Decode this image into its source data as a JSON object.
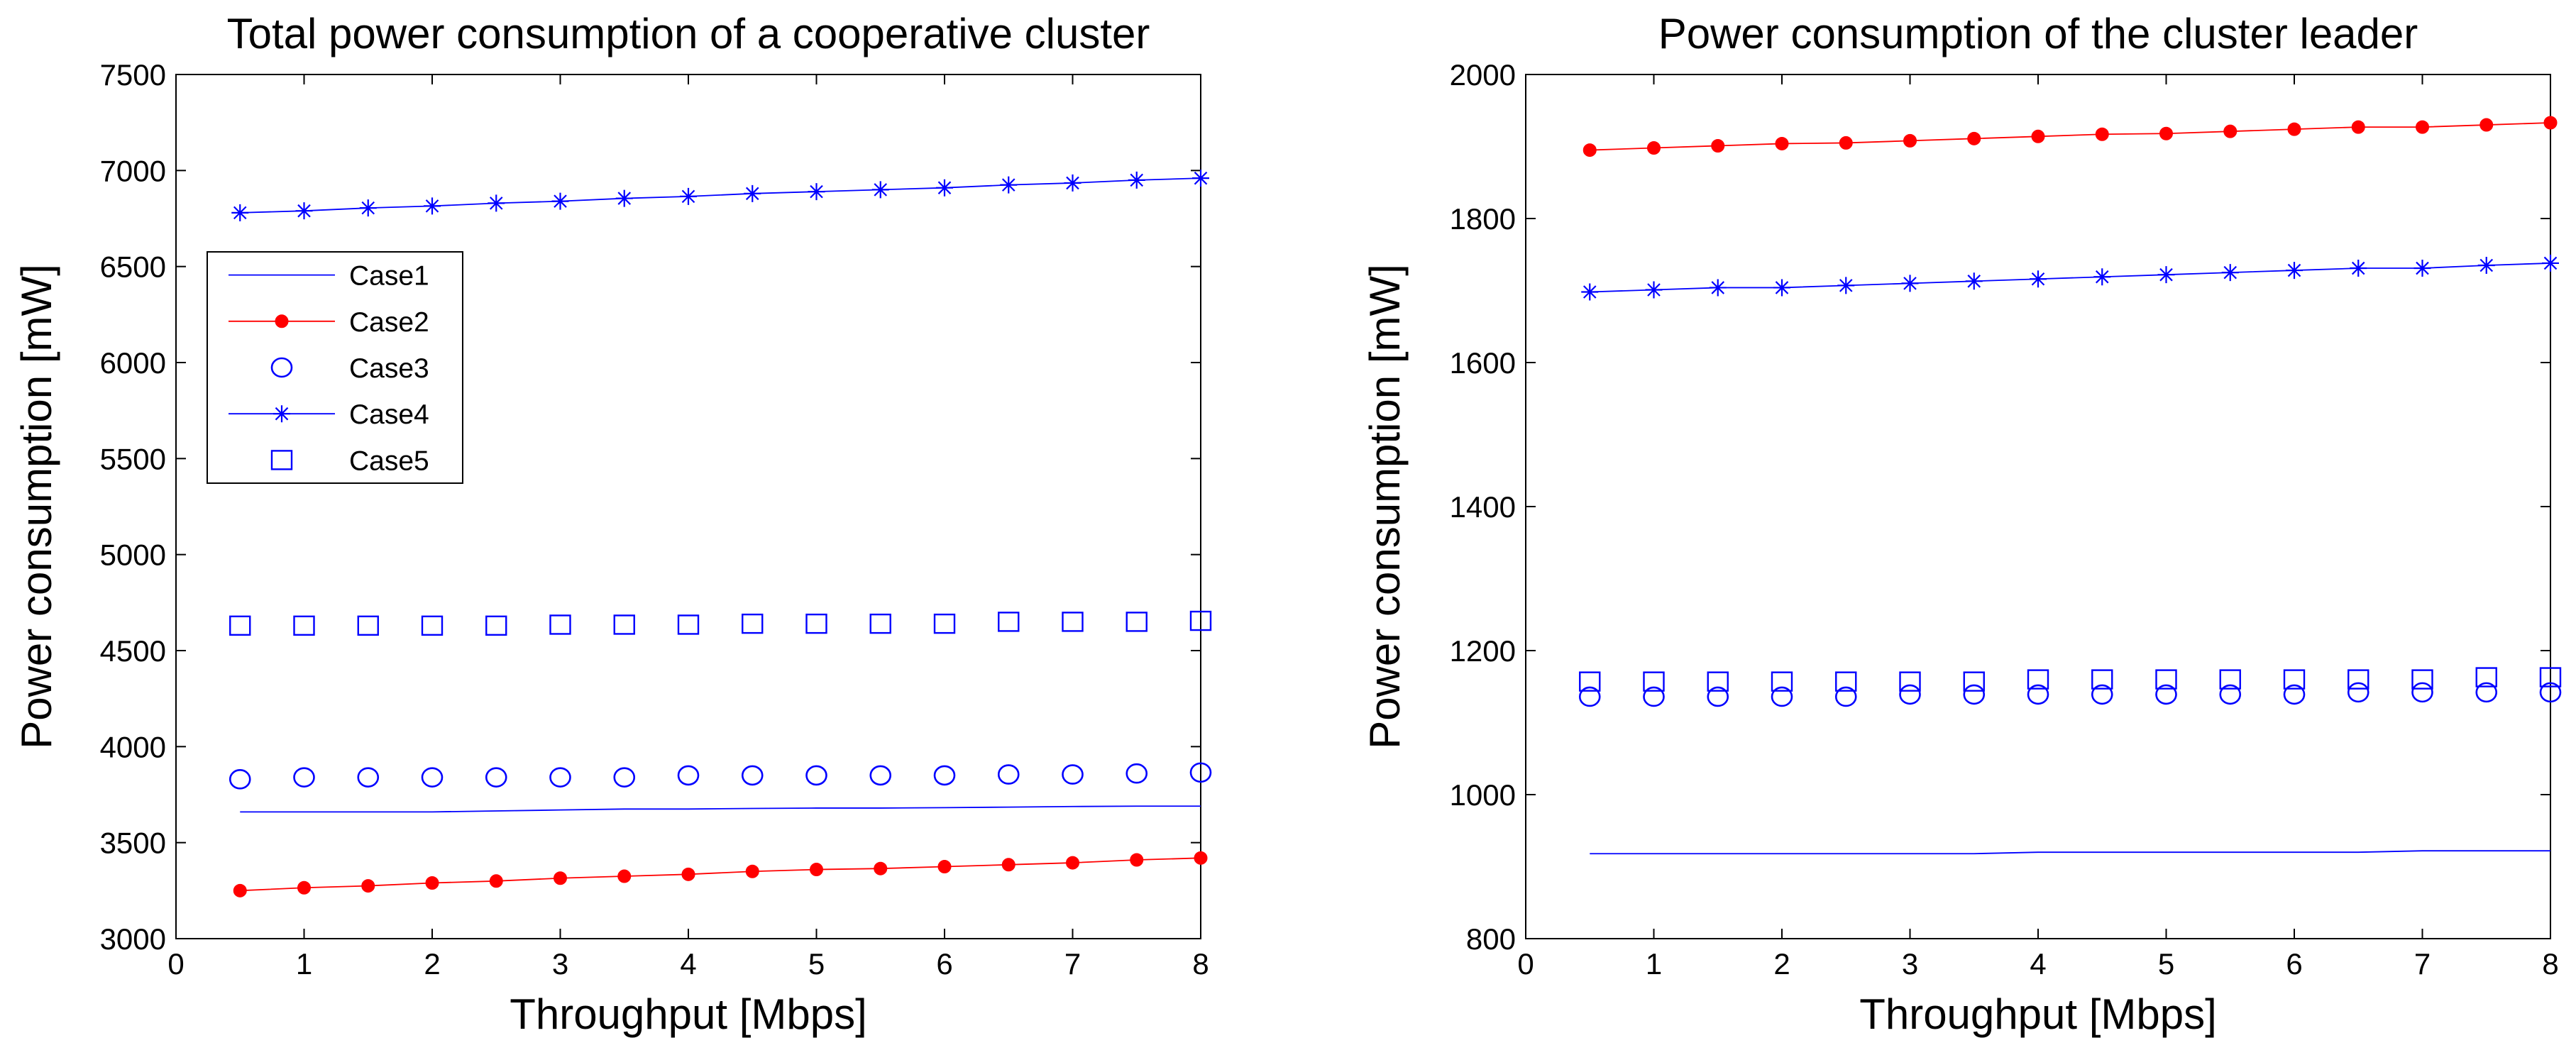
{
  "chart_data": [
    {
      "type": "line",
      "title": "Total power consumption of a cooperative cluster",
      "xlabel": "Throughput [Mbps]",
      "ylabel": "Power consumption [mW]",
      "xlim": [
        0,
        8
      ],
      "ylim": [
        3000,
        7500
      ],
      "xticks": [
        0,
        1,
        2,
        3,
        4,
        5,
        6,
        7,
        8
      ],
      "yticks": [
        3000,
        3500,
        4000,
        4500,
        5000,
        5500,
        6000,
        6500,
        7000,
        7500
      ],
      "grid": false,
      "legend_position": "upper-left",
      "x": [
        0.5,
        1,
        1.5,
        2,
        2.5,
        3,
        3.5,
        4,
        4.5,
        5,
        5.5,
        6,
        6.5,
        7,
        7.5,
        8
      ],
      "series": [
        {
          "name": "Case1",
          "color": "#0000ff",
          "marker": "none",
          "line": true,
          "values": [
            3660,
            3660,
            3660,
            3660,
            3665,
            3670,
            3675,
            3675,
            3678,
            3680,
            3680,
            3682,
            3685,
            3688,
            3690,
            3690
          ]
        },
        {
          "name": "Case2",
          "color": "#ff0000",
          "marker": "dot",
          "line": true,
          "values": [
            3250,
            3265,
            3275,
            3290,
            3300,
            3315,
            3325,
            3335,
            3350,
            3360,
            3365,
            3375,
            3385,
            3395,
            3410,
            3420
          ]
        },
        {
          "name": "Case3",
          "color": "#0000ff",
          "marker": "circle",
          "line": false,
          "values": [
            3830,
            3840,
            3840,
            3840,
            3840,
            3840,
            3840,
            3850,
            3850,
            3850,
            3850,
            3850,
            3855,
            3855,
            3860,
            3865
          ]
        },
        {
          "name": "Case4",
          "color": "#0000ff",
          "marker": "star",
          "line": true,
          "values": [
            6780,
            6790,
            6805,
            6815,
            6830,
            6840,
            6855,
            6865,
            6880,
            6890,
            6900,
            6910,
            6925,
            6935,
            6950,
            6960
          ]
        },
        {
          "name": "Case5",
          "color": "#0000ff",
          "marker": "square",
          "line": false,
          "values": [
            4630,
            4630,
            4630,
            4630,
            4630,
            4635,
            4635,
            4635,
            4640,
            4640,
            4640,
            4640,
            4650,
            4650,
            4650,
            4655
          ]
        }
      ]
    },
    {
      "type": "line",
      "title": "Power consumption of the cluster leader",
      "xlabel": "Throughput [Mbps]",
      "ylabel": "Power consumption [mW]",
      "xlim": [
        0,
        8
      ],
      "ylim": [
        800,
        2000
      ],
      "xticks": [
        0,
        1,
        2,
        3,
        4,
        5,
        6,
        7,
        8
      ],
      "yticks": [
        800,
        1000,
        1200,
        1400,
        1600,
        1800,
        2000
      ],
      "grid": false,
      "x": [
        0.5,
        1,
        1.5,
        2,
        2.5,
        3,
        3.5,
        4,
        4.5,
        5,
        5.5,
        6,
        6.5,
        7,
        7.5,
        8
      ],
      "series": [
        {
          "name": "Case1",
          "color": "#0000ff",
          "marker": "none",
          "line": true,
          "values": [
            918,
            918,
            918,
            918,
            918,
            918,
            918,
            920,
            920,
            920,
            920,
            920,
            920,
            922,
            922,
            922
          ]
        },
        {
          "name": "Case2",
          "color": "#ff0000",
          "marker": "dot",
          "line": true,
          "values": [
            1895,
            1898,
            1901,
            1904,
            1905,
            1908,
            1911,
            1914,
            1917,
            1918,
            1921,
            1924,
            1927,
            1927,
            1930,
            1933
          ]
        },
        {
          "name": "Case3",
          "color": "#0000ff",
          "marker": "circle",
          "line": false,
          "values": [
            1136,
            1136,
            1136,
            1136,
            1136,
            1139,
            1139,
            1139,
            1139,
            1139,
            1139,
            1139,
            1142,
            1142,
            1142,
            1142
          ]
        },
        {
          "name": "Case4",
          "color": "#0000ff",
          "marker": "star",
          "line": true,
          "values": [
            1698,
            1701,
            1704,
            1704,
            1707,
            1710,
            1713,
            1716,
            1719,
            1722,
            1725,
            1728,
            1731,
            1731,
            1735,
            1738
          ]
        },
        {
          "name": "Case5",
          "color": "#0000ff",
          "marker": "square",
          "line": false,
          "values": [
            1157,
            1157,
            1157,
            1157,
            1157,
            1157,
            1157,
            1160,
            1160,
            1160,
            1160,
            1160,
            1160,
            1160,
            1163,
            1163
          ]
        }
      ]
    }
  ]
}
